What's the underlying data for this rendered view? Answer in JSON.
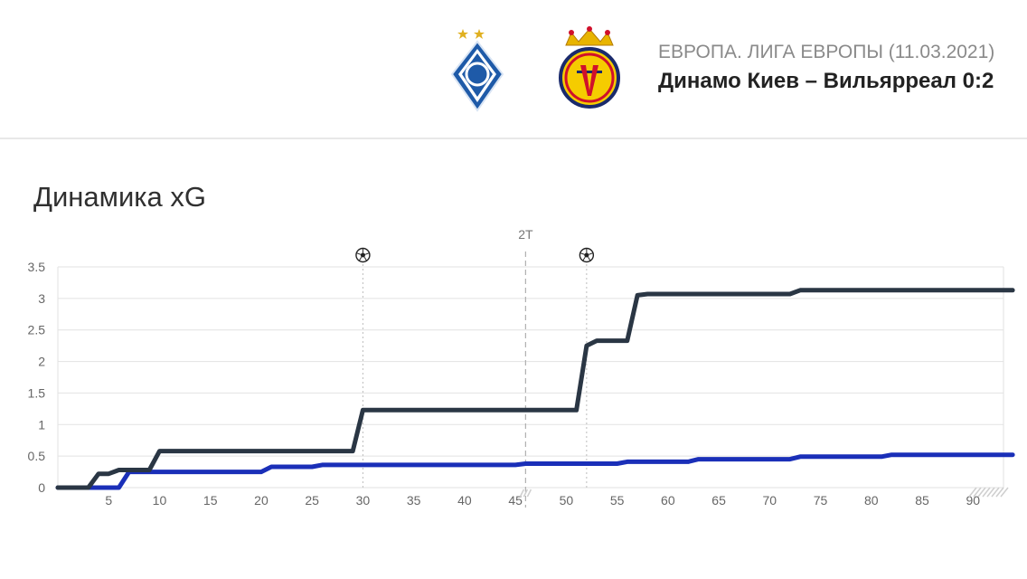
{
  "header": {
    "competition": "ЕВРОПА. ЛИГА ЕВРОПЫ (11.03.2021)",
    "match": "Динамо Киев – Вильярреал 0:2"
  },
  "section_title": "Динамика xG",
  "colors": {
    "team_dark": "#2a3644",
    "team_blue": "#1a2fb8",
    "grid": "#e2e2e2",
    "marker": "#bdbdbd"
  },
  "chart_data": {
    "type": "line",
    "title": "Динамика xG",
    "xlabel": "",
    "ylabel": "",
    "xlim": [
      0,
      93
    ],
    "ylim": [
      0,
      3.5
    ],
    "x_ticks": [
      5,
      10,
      15,
      20,
      25,
      30,
      35,
      40,
      45,
      50,
      55,
      60,
      65,
      70,
      75,
      80,
      85,
      90
    ],
    "y_ticks": [
      {
        "value": 0,
        "label": "0"
      },
      {
        "value": 0.5,
        "label": "0.5"
      },
      {
        "value": 1,
        "label": "1"
      },
      {
        "value": 1.5,
        "label": "1.5"
      },
      {
        "value": 2,
        "label": "2"
      },
      {
        "value": 2.5,
        "label": "2.5"
      },
      {
        "value": 3,
        "label": "3"
      },
      {
        "value": 3.5,
        "label": "3.5"
      }
    ],
    "grid": true,
    "goal_markers": [
      {
        "minute": 30,
        "icon": "soccer-ball-icon"
      },
      {
        "minute": 52,
        "icon": "soccer-ball-icon"
      }
    ],
    "half_marker": {
      "minute": 46,
      "label": "2Т"
    },
    "series": [
      {
        "color": "#2a3644",
        "points": [
          [
            0,
            0
          ],
          [
            3,
            0
          ],
          [
            4,
            0.22
          ],
          [
            5,
            0.22
          ],
          [
            6,
            0.28
          ],
          [
            9,
            0.28
          ],
          [
            10,
            0.58
          ],
          [
            29,
            0.58
          ],
          [
            30,
            1.23
          ],
          [
            51,
            1.23
          ],
          [
            52,
            2.25
          ],
          [
            53,
            2.33
          ],
          [
            56,
            2.33
          ],
          [
            57,
            3.05
          ],
          [
            58,
            3.07
          ],
          [
            72,
            3.07
          ],
          [
            73,
            3.13
          ],
          [
            94,
            3.13
          ]
        ]
      },
      {
        "color": "#1a2fb8",
        "points": [
          [
            0,
            0
          ],
          [
            6,
            0
          ],
          [
            7,
            0.25
          ],
          [
            20,
            0.25
          ],
          [
            21,
            0.33
          ],
          [
            25,
            0.33
          ],
          [
            26,
            0.36
          ],
          [
            45,
            0.36
          ],
          [
            46,
            0.38
          ],
          [
            55,
            0.38
          ],
          [
            56,
            0.41
          ],
          [
            62,
            0.41
          ],
          [
            63,
            0.45
          ],
          [
            72,
            0.45
          ],
          [
            73,
            0.49
          ],
          [
            81,
            0.49
          ],
          [
            82,
            0.52
          ],
          [
            94,
            0.52
          ]
        ]
      }
    ]
  }
}
